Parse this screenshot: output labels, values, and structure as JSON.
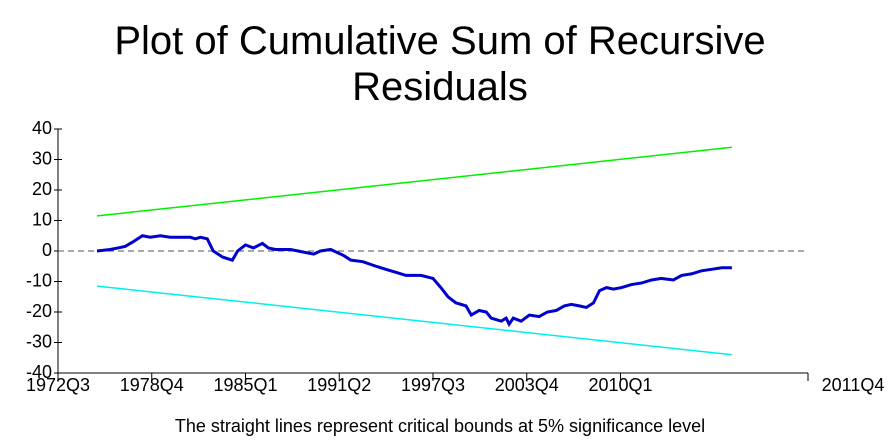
{
  "chart_data": {
    "type": "line",
    "title": "Plot of Cumulative Sum of Recursive Residuals",
    "note": "The straight lines represent critical bounds at 5% significance level",
    "xlim": [
      0,
      200
    ],
    "xticks": [
      {
        "value": 0,
        "label": "1972Q3"
      },
      {
        "value": 25,
        "label": "1978Q4"
      },
      {
        "value": 50,
        "label": "1985Q1"
      },
      {
        "value": 75,
        "label": "1991Q2"
      },
      {
        "value": 100,
        "label": "1997Q3"
      },
      {
        "value": 125,
        "label": "2003Q4"
      },
      {
        "value": 150,
        "label": "2010Q1"
      },
      {
        "value": 200,
        "label": "2011Q4"
      }
    ],
    "ylim": [
      -40,
      40
    ],
    "yticks": [
      -40,
      -30,
      -20,
      -10,
      0,
      10,
      20,
      30,
      40
    ],
    "zero_line": true,
    "series": [
      {
        "color": "#0000cc",
        "x": [
          10.4,
          13.9,
          16,
          17.9,
          20,
          22.5,
          24.6,
          27.3,
          29.9,
          32.6,
          35.3,
          36.6,
          38,
          39.8,
          41.4,
          43.9,
          46.5,
          47.9,
          50,
          52.1,
          54.5,
          56.1,
          58,
          62,
          66,
          68.2,
          70,
          72.7,
          76.2,
          78.1,
          81.3,
          84.8,
          87.4,
          90.1,
          92.8,
          96.8,
          100,
          102.1,
          104,
          106.1,
          108.8,
          110.2,
          112.3,
          114.2,
          115.5,
          118.2,
          119.5,
          120.3,
          121.4,
          123.5,
          125.7,
          128.3,
          130.5,
          132.9,
          135,
          136.9,
          139,
          140.9,
          142.8,
          144.4,
          146.3,
          148.1,
          150.3,
          152.9,
          155.6,
          158.3,
          160.9,
          164.1,
          166.3,
          168.9,
          171.6,
          174.3,
          177,
          179.7
        ],
        "values": [
          0,
          0.5,
          1,
          1.5,
          3,
          5,
          4.5,
          5,
          4.5,
          4.5,
          4.5,
          4,
          4.5,
          4,
          0,
          -2,
          -3,
          0,
          2,
          1,
          2.5,
          1,
          0.5,
          0.5,
          -0.5,
          -1,
          0,
          0.5,
          -1.5,
          -3,
          -3.5,
          -5,
          -6,
          -7,
          -8,
          -8,
          -9,
          -12,
          -15,
          -17,
          -18,
          -21,
          -19.5,
          -20,
          -22,
          -23,
          -22,
          -24,
          -22,
          -23,
          -21,
          -21.5,
          -20,
          -19.5,
          -18,
          -17.5,
          -18,
          -18.5,
          -17,
          -13,
          -12,
          -12.5,
          -12,
          -11,
          -10.5,
          -9.5,
          -9,
          -9.5,
          -8,
          -7.5,
          -6.5,
          -6,
          -5.5,
          -5.5
        ]
      },
      {
        "color": "#00ee00",
        "x": [
          10.4,
          179.7
        ],
        "values": [
          11.5,
          34
        ]
      },
      {
        "color": "#00eeee",
        "x": [
          10.4,
          179.7
        ],
        "values": [
          -11.5,
          -34
        ]
      }
    ]
  }
}
